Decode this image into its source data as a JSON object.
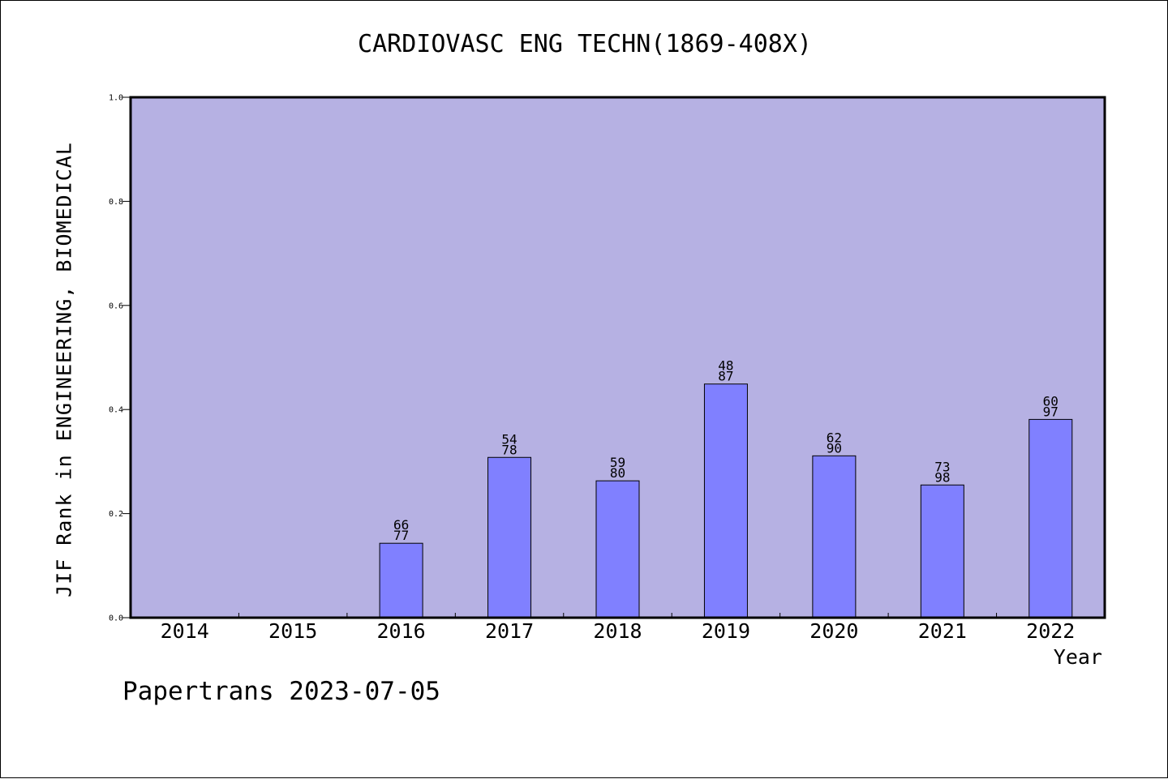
{
  "chart_data": {
    "type": "bar",
    "title": "CARDIOVASC ENG TECHN(1869-408X)",
    "xlabel": "Year",
    "ylabel": "JIF Rank in ENGINEERING, BIOMEDICAL",
    "ylim": [
      0,
      1.0
    ],
    "yticks": [
      "0.0",
      "0.2",
      "0.4",
      "0.6",
      "0.8",
      "1.0"
    ],
    "categories": [
      "2014",
      "2015",
      "2016",
      "2017",
      "2018",
      "2019",
      "2020",
      "2021",
      "2022"
    ],
    "values": [
      null,
      null,
      0.143,
      0.308,
      0.263,
      0.449,
      0.311,
      0.255,
      0.381
    ],
    "labels": [
      null,
      null,
      [
        "66",
        "77"
      ],
      [
        "54",
        "78"
      ],
      [
        "59",
        "80"
      ],
      [
        "48",
        "87"
      ],
      [
        "62",
        "90"
      ],
      [
        "73",
        "98"
      ],
      [
        "60",
        "97"
      ]
    ],
    "grid": false,
    "plot_background": "#b6b1e3",
    "bar_color": "#8080ff"
  },
  "watermark": "Papertrans 2023-07-05"
}
